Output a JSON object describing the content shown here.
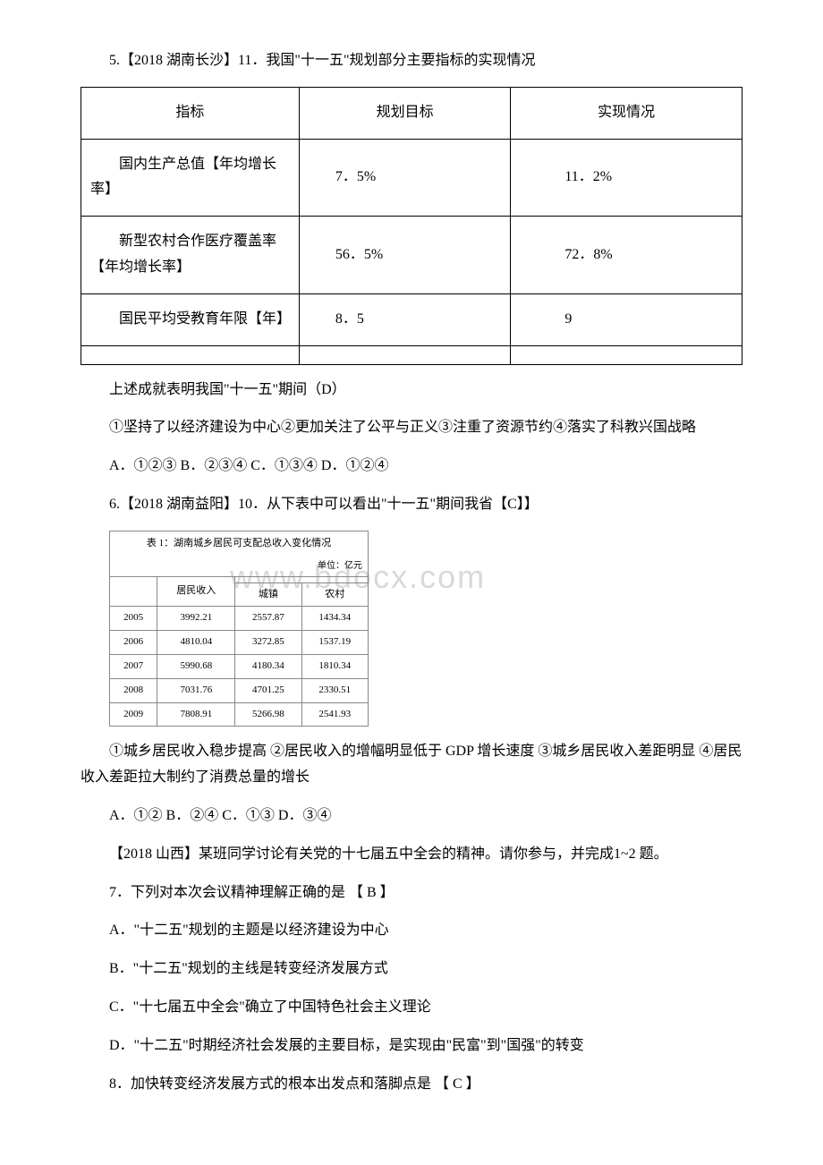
{
  "q5": {
    "intro": "5.【2018 湖南长沙】11．我国\"十一五\"规划部分主要指标的实现情况",
    "table": {
      "headers": [
        "指标",
        "规划目标",
        "实现情况"
      ],
      "rows": [
        [
          "国内生产总值【年均增长率】",
          "7．5%",
          "11．2%"
        ],
        [
          "新型农村合作医疗覆盖率【年均增长率】",
          "56．5%",
          "72．8%"
        ],
        [
          "国民平均受教育年限【年】",
          "8．5",
          "9"
        ]
      ]
    },
    "stem": "上述成就表明我国\"十一五\"期间（D）",
    "options_desc": "①坚持了以经济建设为中心②更加关注了公平与正义③注重了资源节约④落实了科教兴国战略",
    "options": "A．①②③  B．②③④  C．①③④  D．①②④"
  },
  "q6": {
    "intro": "6.【2018 湖南益阳】10．从下表中可以看出\"十一五\"期间我省【C】】",
    "sub_table": {
      "title": "表 1：湖南城乡居民可支配总收入变化情况",
      "unit": "单位：亿元",
      "header_main": "居民收入",
      "header_sub1": "城镇",
      "header_sub2": "农村",
      "rows": [
        [
          "2005",
          "3992.21",
          "2557.87",
          "1434.34"
        ],
        [
          "2006",
          "4810.04",
          "3272.85",
          "1537.19"
        ],
        [
          "2007",
          "5990.68",
          "4180.34",
          "1810.34"
        ],
        [
          "2008",
          "7031.76",
          "4701.25",
          "2330.51"
        ],
        [
          "2009",
          "7808.91",
          "5266.98",
          "2541.93"
        ]
      ]
    },
    "watermark": "www.bdocx.com",
    "options_desc": "①城乡居民收入稳步提高 ②居民收入的增幅明显低于 GDP 增长速度 ③城乡居民收入差距明显 ④居民收入差距拉大制约了消费总量的增长",
    "options": "A．①② B．②④ C．①③ D．③④"
  },
  "shanxi": {
    "intro": "【2018 山西】某班同学讨论有关党的十七届五中全会的精神。请你参与，并完成1~2 题。"
  },
  "q7": {
    "stem": "7．下列对本次会议精神理解正确的是 【 B 】",
    "a": "A．\"十二五\"规划的主题是以经济建设为中心",
    "b": "B．\"十二五\"规划的主线是转变经济发展方式",
    "c": "C．\"十七届五中全会\"确立了中国特色社会主义理论",
    "d": "D．\"十二五\"时期经济社会发展的主要目标，是实现由\"民富\"到\"国强\"的转变"
  },
  "q8": {
    "stem": "8．加快转变经济发展方式的根本出发点和落脚点是 【 C 】"
  }
}
